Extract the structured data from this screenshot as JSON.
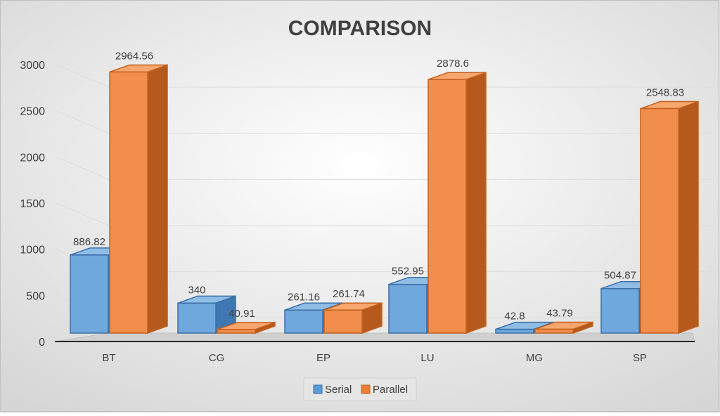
{
  "chart_data": {
    "type": "bar",
    "title": "COMPARISON",
    "categories": [
      "BT",
      "CG",
      "EP",
      "LU",
      "MG",
      "SP"
    ],
    "series": [
      {
        "name": "Serial",
        "values": [
          886.82,
          340,
          261.16,
          552.95,
          42.8,
          504.87
        ]
      },
      {
        "name": "Parallel",
        "values": [
          2964.56,
          40.91,
          261.74,
          2878.6,
          43.79,
          2548.83
        ]
      }
    ],
    "data_labels": {
      "Serial": [
        "886.82",
        "340",
        "261.16",
        "552.95",
        "42.8",
        "504.87"
      ],
      "Parallel": [
        "2964.56",
        "40.91",
        "261.74",
        "2878.6",
        "43.79",
        "2548.83"
      ]
    },
    "y_ticks": [
      "0",
      "500",
      "1000",
      "1500",
      "2000",
      "2500",
      "3000"
    ],
    "ylim": [
      0,
      3000
    ],
    "grid": true,
    "legend": "bottom",
    "three_d": true,
    "colors": {
      "Serial": "#5b9bd5",
      "Parallel": "#ed7d31"
    }
  }
}
